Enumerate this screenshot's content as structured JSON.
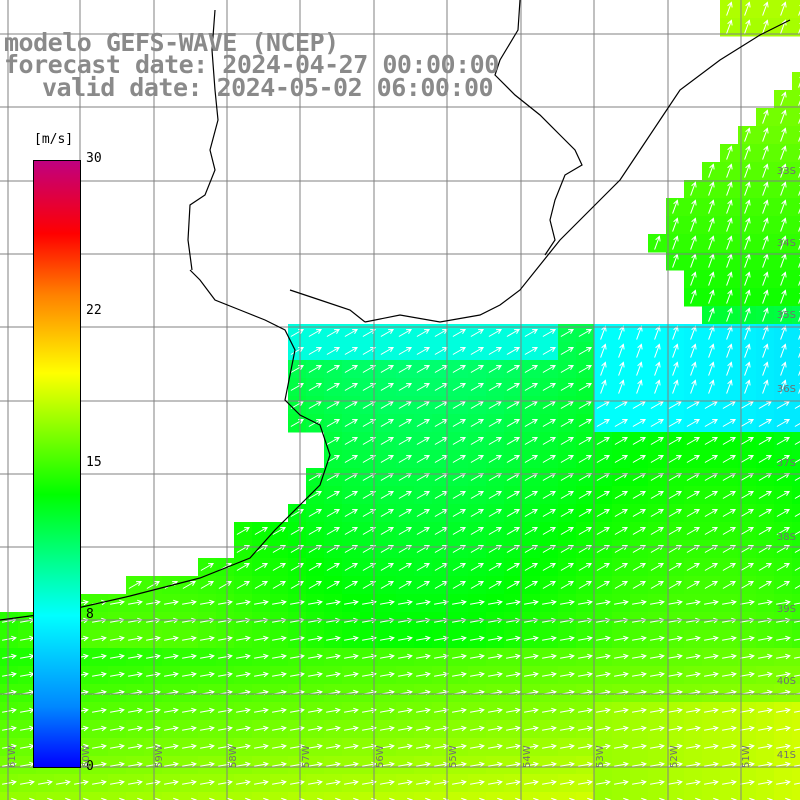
{
  "title": {
    "line1": "modelo GEFS-WAVE (NCEP)",
    "line2": "forecast date: 2024-04-27 00:00:00",
    "line3": "valid date: 2024-05-02 06:00:00"
  },
  "colorbar": {
    "unit": "[m/s]",
    "ticks": [
      "30",
      "22",
      "15",
      "8",
      "0"
    ],
    "colors": [
      "#0000ff",
      "#0088ff",
      "#00ffff",
      "#00ff00",
      "#80ff00",
      "#ffff00",
      "#ff8000",
      "#ff0000",
      "#c00080"
    ]
  },
  "lon_labels": [
    "61W",
    "60W",
    "59W",
    "58W",
    "57W",
    "56W",
    "55W",
    "54W",
    "53W",
    "52W",
    "51W"
  ],
  "lat_labels": [
    "33S",
    "34S",
    "35S",
    "36S",
    "37S",
    "38S",
    "39S",
    "40S",
    "41S"
  ],
  "colors": {
    "land": "#ffffff",
    "grid": "#808080",
    "coast": "#000000",
    "arrows": "#ffffff"
  }
}
